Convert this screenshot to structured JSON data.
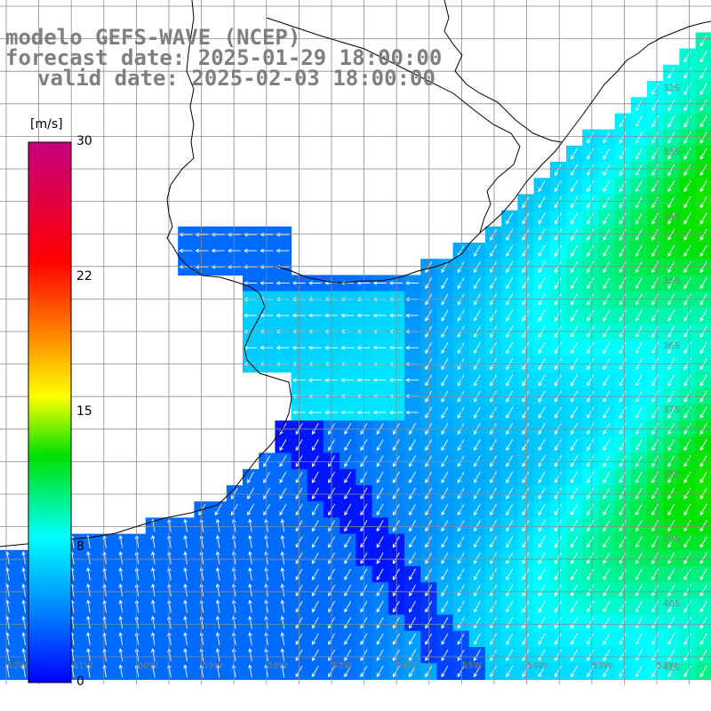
{
  "title": {
    "line1": "modelo GEFS-WAVE (NCEP)",
    "line2": "forecast date: 2025-01-29 18:00:00",
    "line3": "valid date: 2025-02-03 18:00:00"
  },
  "colorbar": {
    "units": "[m/s]",
    "ticks": [
      "30",
      "22",
      "15",
      "8",
      "0"
    ],
    "colors": [
      "#c6007f",
      "#ff0000",
      "#ff7f00",
      "#ffff00",
      "#00ff00",
      "#00ffff",
      "#0080ff",
      "#0000ff"
    ]
  },
  "lat_labels": [
    "32S",
    "33S",
    "34S",
    "35S",
    "36S",
    "37S",
    "38S",
    "39S",
    "40S",
    "41S"
  ],
  "lon_labels": [
    "62W",
    "61W",
    "60W",
    "59W",
    "58W",
    "57W",
    "56W",
    "55W",
    "54W",
    "53W",
    "52W"
  ],
  "colors": {
    "land": "#ffffff",
    "coast": "#000000",
    "grid": "#8c8c8c",
    "arrow": "#ffffff"
  }
}
